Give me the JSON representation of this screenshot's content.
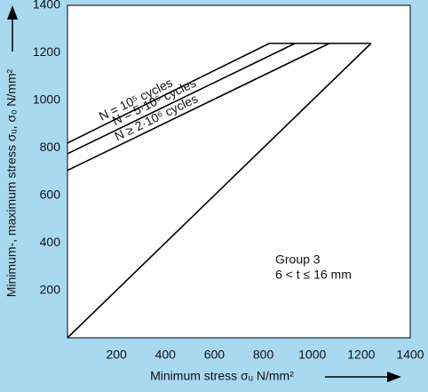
{
  "chart_data": {
    "type": "line",
    "x_label": "Minimum stress σᵤ N/mm²",
    "y_label": "Minimum-, maximum stress σᵤ, σₒ N/mm²",
    "xlim": [
      0,
      1400
    ],
    "ylim": [
      0,
      1400
    ],
    "xticks": [
      200,
      400,
      600,
      800,
      1000,
      1200,
      1400
    ],
    "yticks": [
      200,
      400,
      600,
      800,
      1000,
      1200,
      1400
    ],
    "color": "#000000",
    "series": [
      {
        "name": "N = 10⁵ cycles",
        "x": [
          0,
          825
        ],
        "values": [
          820,
          1240
        ],
        "label_at": 295
      },
      {
        "name": "N = 5·10⁵ cycles",
        "x": [
          0,
          930
        ],
        "values": [
          775,
          1240
        ],
        "label_at": 370
      },
      {
        "name": "N ≥ 2·10⁶ cycles",
        "x": [
          0,
          1070
        ],
        "values": [
          705,
          1240
        ],
        "label_at": 378
      },
      {
        "x": [
          0,
          1240
        ],
        "values": [
          0,
          1240
        ]
      },
      {
        "x": [
          825,
          1240
        ],
        "values": [
          1240,
          1240
        ]
      }
    ],
    "annotations": [
      "Group 3",
      "6 < t ≤ 16 mm"
    ]
  }
}
